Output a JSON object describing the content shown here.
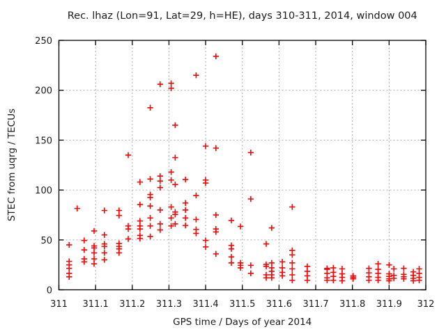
{
  "chart_data": {
    "type": "scatter",
    "title": "Rec. lhaz (Lon=91, Lat=29, h=HE), days 310-311, 2014, window 004",
    "xlabel": "GPS time / Days of year 2014",
    "ylabel": "STEC from uqrg / TECUs",
    "xlim": [
      311,
      312
    ],
    "ylim": [
      0,
      250
    ],
    "xticks": {
      "values": [
        311,
        311.1,
        311.2,
        311.3,
        311.4,
        311.5,
        311.6,
        311.7,
        311.8,
        311.9,
        312
      ],
      "labels": [
        "311",
        "311.1",
        "311.2",
        "311.3",
        "311.4",
        "311.5",
        "311.6",
        "311.7",
        "311.8",
        "311.9",
        "312"
      ]
    },
    "yticks": {
      "values": [
        0,
        50,
        100,
        150,
        200,
        250
      ],
      "labels": [
        "0",
        "50",
        "100",
        "150",
        "200",
        "250"
      ]
    },
    "grid": true,
    "legend": "none",
    "marker": {
      "shape": "plus",
      "color": "#ff0000",
      "size": 9
    },
    "points": [
      [
        311.028,
        45
      ],
      [
        311.028,
        28.5
      ],
      [
        311.028,
        25
      ],
      [
        311.028,
        21.5
      ],
      [
        311.028,
        16.5
      ],
      [
        311.028,
        13
      ],
      [
        311.05,
        81.5
      ],
      [
        311.069,
        49.5
      ],
      [
        311.069,
        40
      ],
      [
        311.069,
        31
      ],
      [
        311.069,
        28
      ],
      [
        311.096,
        59
      ],
      [
        311.096,
        44
      ],
      [
        311.096,
        42
      ],
      [
        311.096,
        37
      ],
      [
        311.096,
        31
      ],
      [
        311.096,
        26
      ],
      [
        311.124,
        79.5
      ],
      [
        311.124,
        55
      ],
      [
        311.124,
        46
      ],
      [
        311.124,
        43.5
      ],
      [
        311.124,
        37
      ],
      [
        311.124,
        30
      ],
      [
        311.164,
        79.5
      ],
      [
        311.164,
        74.5
      ],
      [
        311.164,
        46.5
      ],
      [
        311.164,
        43.5
      ],
      [
        311.164,
        41
      ],
      [
        311.164,
        37
      ],
      [
        311.189,
        135
      ],
      [
        311.189,
        64
      ],
      [
        311.189,
        61
      ],
      [
        311.189,
        51
      ],
      [
        311.221,
        108
      ],
      [
        311.221,
        85.5
      ],
      [
        311.221,
        69
      ],
      [
        311.221,
        64
      ],
      [
        311.221,
        61
      ],
      [
        311.221,
        54.5
      ],
      [
        311.221,
        51.5
      ],
      [
        311.249,
        182.5
      ],
      [
        311.249,
        111
      ],
      [
        311.249,
        95.5
      ],
      [
        311.249,
        92.5
      ],
      [
        311.249,
        84
      ],
      [
        311.249,
        72
      ],
      [
        311.249,
        64
      ],
      [
        311.249,
        53.5
      ],
      [
        311.276,
        206
      ],
      [
        311.276,
        114
      ],
      [
        311.276,
        109
      ],
      [
        311.276,
        102.5
      ],
      [
        311.276,
        80
      ],
      [
        311.276,
        66
      ],
      [
        311.276,
        60
      ],
      [
        311.306,
        207
      ],
      [
        311.306,
        202
      ],
      [
        311.306,
        118
      ],
      [
        311.306,
        110
      ],
      [
        311.306,
        83
      ],
      [
        311.306,
        72
      ],
      [
        311.306,
        64
      ],
      [
        311.317,
        165
      ],
      [
        311.317,
        132.5
      ],
      [
        311.317,
        105.5
      ],
      [
        311.317,
        78
      ],
      [
        311.317,
        75.5
      ],
      [
        311.317,
        66
      ],
      [
        311.345,
        110.5
      ],
      [
        311.345,
        87
      ],
      [
        311.345,
        80
      ],
      [
        311.345,
        72
      ],
      [
        311.345,
        64.5
      ],
      [
        311.374,
        215
      ],
      [
        311.374,
        94.5
      ],
      [
        311.374,
        70.5
      ],
      [
        311.374,
        60.5
      ],
      [
        311.374,
        56.5
      ],
      [
        311.4,
        144
      ],
      [
        311.4,
        110
      ],
      [
        311.4,
        107
      ],
      [
        311.4,
        49.5
      ],
      [
        311.4,
        43
      ],
      [
        311.428,
        234
      ],
      [
        311.428,
        142
      ],
      [
        311.428,
        75
      ],
      [
        311.428,
        61
      ],
      [
        311.428,
        58
      ],
      [
        311.428,
        36
      ],
      [
        311.47,
        69.5
      ],
      [
        311.47,
        44.5
      ],
      [
        311.47,
        41
      ],
      [
        311.47,
        33
      ],
      [
        311.47,
        27
      ],
      [
        311.495,
        63.5
      ],
      [
        311.495,
        27
      ],
      [
        311.495,
        24.5
      ],
      [
        311.495,
        22
      ],
      [
        311.523,
        137.5
      ],
      [
        311.523,
        91
      ],
      [
        311.523,
        24.5
      ],
      [
        311.523,
        16.5
      ],
      [
        311.565,
        46
      ],
      [
        311.565,
        25.5
      ],
      [
        311.565,
        23.5
      ],
      [
        311.565,
        15
      ],
      [
        311.565,
        12
      ],
      [
        311.58,
        62
      ],
      [
        311.58,
        27
      ],
      [
        311.58,
        22
      ],
      [
        311.58,
        18.5
      ],
      [
        311.58,
        15
      ],
      [
        311.58,
        12
      ],
      [
        311.609,
        28
      ],
      [
        311.609,
        22
      ],
      [
        311.609,
        17.5
      ],
      [
        311.609,
        14
      ],
      [
        311.636,
        83
      ],
      [
        311.636,
        39.5
      ],
      [
        311.636,
        35
      ],
      [
        311.636,
        27
      ],
      [
        311.636,
        21
      ],
      [
        311.636,
        15
      ],
      [
        311.636,
        9.5
      ],
      [
        311.677,
        23.5
      ],
      [
        311.677,
        18.5
      ],
      [
        311.677,
        14
      ],
      [
        311.677,
        9.5
      ],
      [
        311.731,
        21.5
      ],
      [
        311.731,
        20.5
      ],
      [
        311.731,
        16.5
      ],
      [
        311.731,
        12
      ],
      [
        311.731,
        9.5
      ],
      [
        311.748,
        22
      ],
      [
        311.748,
        17.5
      ],
      [
        311.748,
        13.5
      ],
      [
        311.748,
        9.5
      ],
      [
        311.772,
        21
      ],
      [
        311.772,
        16
      ],
      [
        311.772,
        12.5
      ],
      [
        311.772,
        9
      ],
      [
        311.802,
        14
      ],
      [
        311.802,
        12.5
      ],
      [
        311.802,
        11
      ],
      [
        311.845,
        21.5
      ],
      [
        311.845,
        17
      ],
      [
        311.845,
        13
      ],
      [
        311.845,
        9.5
      ],
      [
        311.87,
        26
      ],
      [
        311.87,
        20.5
      ],
      [
        311.87,
        16.5
      ],
      [
        311.87,
        12.5
      ],
      [
        311.87,
        9.5
      ],
      [
        311.9,
        25
      ],
      [
        311.9,
        16
      ],
      [
        311.9,
        13.5
      ],
      [
        311.9,
        11
      ],
      [
        311.9,
        9
      ],
      [
        311.913,
        21
      ],
      [
        311.913,
        14.5
      ],
      [
        311.913,
        11.5
      ],
      [
        311.94,
        21.5
      ],
      [
        311.94,
        15.5
      ],
      [
        311.94,
        13
      ],
      [
        311.94,
        11
      ],
      [
        311.966,
        18
      ],
      [
        311.966,
        14.5
      ],
      [
        311.966,
        11.5
      ],
      [
        311.966,
        9
      ],
      [
        311.982,
        21
      ],
      [
        311.982,
        16.5
      ],
      [
        311.982,
        12.5
      ],
      [
        311.982,
        9.5
      ]
    ]
  },
  "colors": {
    "marker": "#ff0000",
    "grid": "#aaaaaa",
    "axis": "#000000",
    "text": "#1a1a1a",
    "background": "#ffffff"
  }
}
